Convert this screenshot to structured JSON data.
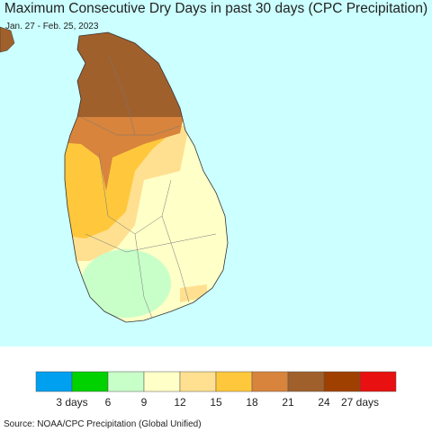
{
  "title": "Maximum Consecutive Dry Days in past 30 days (CPC Precipitation)",
  "subtitle": "Jan. 27 - Feb. 25, 2023",
  "legend": {
    "colors": [
      "#00a0f0",
      "#00d200",
      "#c8ffc8",
      "#ffffc8",
      "#ffe090",
      "#ffc83c",
      "#d8843c",
      "#a0602c",
      "#a04000",
      "#e81010"
    ],
    "labels": [
      "3 days",
      "6",
      "9",
      "12",
      "15",
      "18",
      "21",
      "24",
      "27 days"
    ]
  },
  "source": "Source: NOAA/CPC Precipitation (Global Unified)"
}
